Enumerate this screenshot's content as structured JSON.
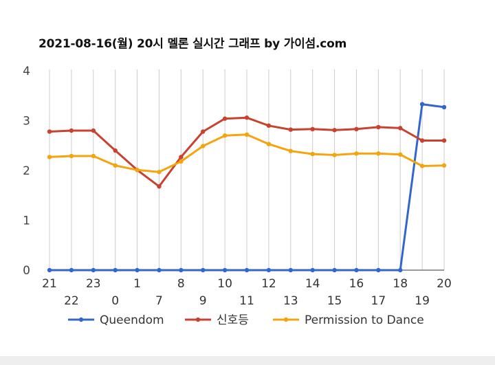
{
  "chart_data": {
    "type": "line",
    "title": "2021-08-16(월) 20시 멜론 실시간 그래프 by 가이섬.com",
    "xlabel": "",
    "ylabel": "",
    "categories": [
      "21",
      "22",
      "23",
      "0",
      "1",
      "7",
      "8",
      "9",
      "10",
      "11",
      "12",
      "13",
      "14",
      "15",
      "16",
      "17",
      "18",
      "19",
      "20"
    ],
    "yticks": [
      "0",
      "1",
      "2",
      "3",
      "4"
    ],
    "ylim": [
      0,
      4
    ],
    "grid": true,
    "legend": "bottom",
    "series": [
      {
        "name": "Queendom",
        "color": "#3366cc",
        "values": [
          0,
          0,
          0,
          0,
          0,
          0,
          0,
          0,
          0,
          0,
          0,
          0,
          0,
          0,
          0,
          0,
          0,
          3.33,
          3.27
        ]
      },
      {
        "name": "신호등",
        "color": "#c9412f",
        "values": [
          2.78,
          2.8,
          2.8,
          2.4,
          2.01,
          1.68,
          2.27,
          2.78,
          3.04,
          3.06,
          2.9,
          2.82,
          2.83,
          2.81,
          2.83,
          2.87,
          2.85,
          2.6,
          2.6
        ]
      },
      {
        "name": "Permission to Dance",
        "color": "#f4a40f",
        "values": [
          2.27,
          2.29,
          2.29,
          2.1,
          2.01,
          1.97,
          2.18,
          2.49,
          2.7,
          2.72,
          2.53,
          2.39,
          2.33,
          2.31,
          2.34,
          2.34,
          2.32,
          2.09,
          2.1
        ]
      }
    ]
  }
}
